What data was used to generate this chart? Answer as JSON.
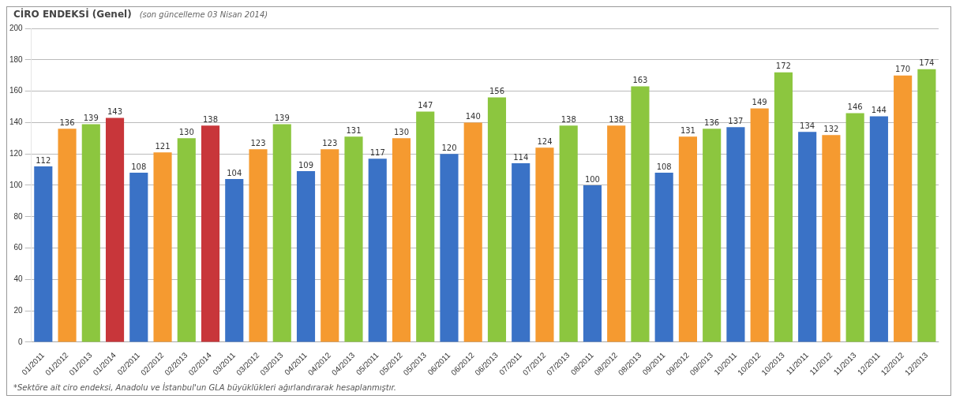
{
  "chart_data": {
    "type": "bar",
    "title": "CİRO ENDEKSİ (Genel)",
    "subtitle": "(son güncelleme 03 Nisan 2014)",
    "annotations": [
      "*Sektöre ait ciro endeksi, Anadolu ve İstanbul'un GLA büyüklükleri ağırlandırarak hesaplanmıştır."
    ],
    "categories": [
      "01/2011",
      "01/2012",
      "01/2013",
      "01/2014",
      "02/2011",
      "02/2012",
      "02/2013",
      "02/2014",
      "03/2011",
      "03/2012",
      "03/2013",
      "04/2011",
      "04/2012",
      "04/2013",
      "05/2011",
      "05/2012",
      "05/2013",
      "06/2011",
      "06/2012",
      "06/2013",
      "07/2011",
      "07/2012",
      "07/2013",
      "08/2011",
      "08/2012",
      "08/2013",
      "09/2011",
      "09/2012",
      "09/2013",
      "10/2011",
      "10/2012",
      "10/2013",
      "11/2011",
      "11/2012",
      "11/2013",
      "12/2011",
      "12/2012",
      "12/2013"
    ],
    "values": [
      112,
      136,
      139,
      143,
      108,
      121,
      130,
      138,
      104,
      123,
      139,
      109,
      123,
      131,
      117,
      130,
      147,
      120,
      140,
      156,
      114,
      124,
      138,
      100,
      138,
      163,
      108,
      131,
      136,
      137,
      149,
      172,
      134,
      132,
      146,
      144,
      170,
      174
    ],
    "colors": [
      "#3a72c6",
      "#f59a30",
      "#8cc63f",
      "#c8363a",
      "#3a72c6",
      "#f59a30",
      "#8cc63f",
      "#c8363a",
      "#3a72c6",
      "#f59a30",
      "#8cc63f",
      "#3a72c6",
      "#f59a30",
      "#8cc63f",
      "#3a72c6",
      "#f59a30",
      "#8cc63f",
      "#3a72c6",
      "#f59a30",
      "#8cc63f",
      "#3a72c6",
      "#f59a30",
      "#8cc63f",
      "#3a72c6",
      "#f59a30",
      "#8cc63f",
      "#3a72c6",
      "#f59a30",
      "#8cc63f",
      "#3a72c6",
      "#f59a30",
      "#8cc63f",
      "#3a72c6",
      "#f59a30",
      "#8cc63f",
      "#3a72c6",
      "#f59a30",
      "#8cc63f"
    ],
    "ylim": [
      0,
      200
    ],
    "yticks": [
      0,
      20,
      40,
      60,
      80,
      100,
      120,
      140,
      160,
      180,
      200
    ],
    "grid": "y",
    "data_labels": true
  }
}
